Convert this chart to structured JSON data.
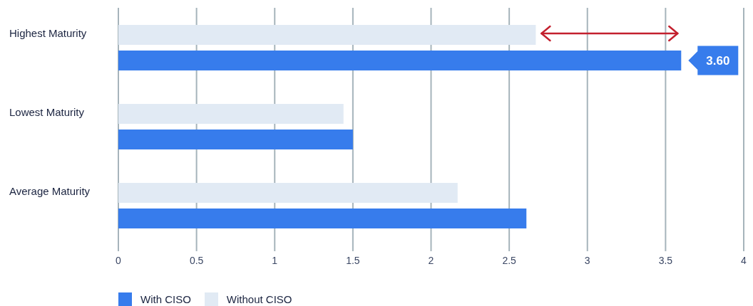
{
  "chart_data": {
    "type": "bar",
    "orientation": "horizontal",
    "categories": [
      "Highest Maturity",
      "Lowest Maturity",
      "Average Maturity"
    ],
    "series": [
      {
        "name": "With CISO",
        "color": "#377cec",
        "values": [
          3.6,
          1.5,
          2.61
        ],
        "value_labels": [
          "3.60",
          null,
          null
        ]
      },
      {
        "name": "Without CISO",
        "color": "#e1eaf4",
        "values": [
          2.67,
          1.44,
          2.17
        ]
      }
    ],
    "xlim": [
      0,
      4
    ],
    "xticks": [
      0,
      0.5,
      1,
      1.5,
      2,
      2.5,
      3,
      3.5,
      4
    ],
    "grid": "x",
    "legend": "bottom left"
  }
}
